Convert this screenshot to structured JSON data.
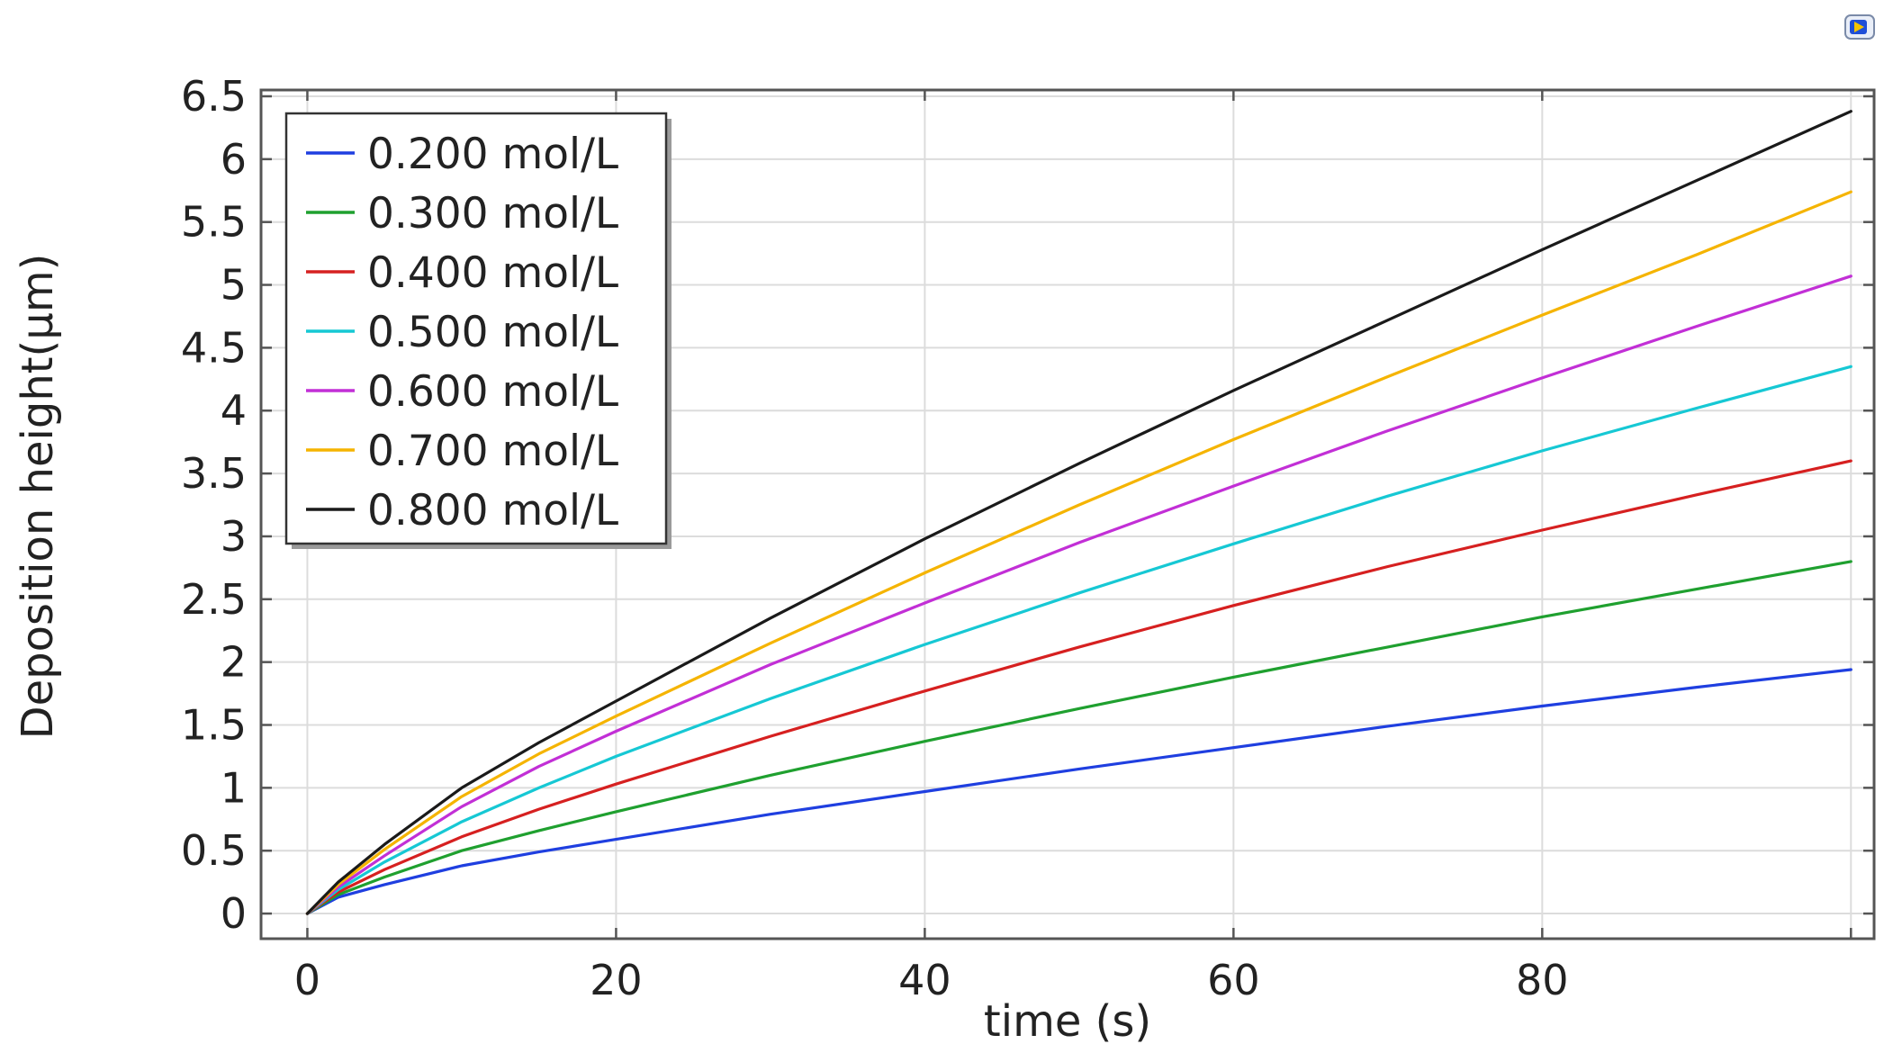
{
  "chart_data": {
    "type": "line",
    "title": "",
    "xlabel": "time (s)",
    "ylabel": "Deposition height(μm)",
    "xlim": [
      -3,
      101.5
    ],
    "ylim": [
      -0.2,
      6.55
    ],
    "x_ticks": [
      0,
      20,
      40,
      60,
      80
    ],
    "y_ticks": [
      0,
      0.5,
      1,
      1.5,
      2,
      2.5,
      3,
      3.5,
      4,
      4.5,
      5,
      5.5,
      6,
      6.5
    ],
    "x_tick_labels": [
      "0",
      "20",
      "40",
      "60",
      "80"
    ],
    "y_tick_labels": [
      "0",
      "0.5",
      "1",
      "1.5",
      "2",
      "2.5",
      "3",
      "3.5",
      "4",
      "4.5",
      "5",
      "5.5",
      "6",
      "6.5"
    ],
    "grid": true,
    "legend_position": "top-left",
    "x": [
      0,
      2,
      5,
      10,
      15,
      20,
      30,
      40,
      50,
      60,
      70,
      80,
      90,
      100
    ],
    "series": [
      {
        "name": "0.200 mol/L",
        "color": "#1f3fe0",
        "values": [
          0,
          0.13,
          0.23,
          0.38,
          0.49,
          0.59,
          0.79,
          0.97,
          1.15,
          1.32,
          1.49,
          1.65,
          1.8,
          1.94
        ]
      },
      {
        "name": "0.300 mol/L",
        "color": "#1fa02f",
        "values": [
          0,
          0.15,
          0.29,
          0.5,
          0.66,
          0.81,
          1.1,
          1.37,
          1.63,
          1.88,
          2.12,
          2.36,
          2.58,
          2.8
        ]
      },
      {
        "name": "0.400 mol/L",
        "color": "#d62020",
        "values": [
          0,
          0.17,
          0.35,
          0.61,
          0.83,
          1.03,
          1.41,
          1.77,
          2.12,
          2.45,
          2.76,
          3.05,
          3.33,
          3.6
        ]
      },
      {
        "name": "0.500 mol/L",
        "color": "#16c8d4",
        "values": [
          0,
          0.19,
          0.41,
          0.73,
          1.0,
          1.25,
          1.71,
          2.14,
          2.55,
          2.94,
          3.32,
          3.68,
          4.02,
          4.35
        ]
      },
      {
        "name": "0.600 mol/L",
        "color": "#c22fd6",
        "values": [
          0,
          0.21,
          0.46,
          0.85,
          1.17,
          1.45,
          1.98,
          2.47,
          2.95,
          3.4,
          3.84,
          4.26,
          4.67,
          5.07
        ]
      },
      {
        "name": "0.700 mol/L",
        "color": "#f5b400",
        "values": [
          0,
          0.23,
          0.51,
          0.93,
          1.27,
          1.57,
          2.15,
          2.71,
          3.25,
          3.77,
          4.27,
          4.76,
          5.24,
          5.74
        ]
      },
      {
        "name": "0.800 mol/L",
        "color": "#1a1a1a",
        "values": [
          0,
          0.25,
          0.55,
          1.0,
          1.36,
          1.69,
          2.35,
          2.98,
          3.58,
          4.16,
          4.72,
          5.28,
          5.83,
          6.38
        ]
      }
    ]
  },
  "icons": {
    "corner": "view-toggle-icon"
  }
}
